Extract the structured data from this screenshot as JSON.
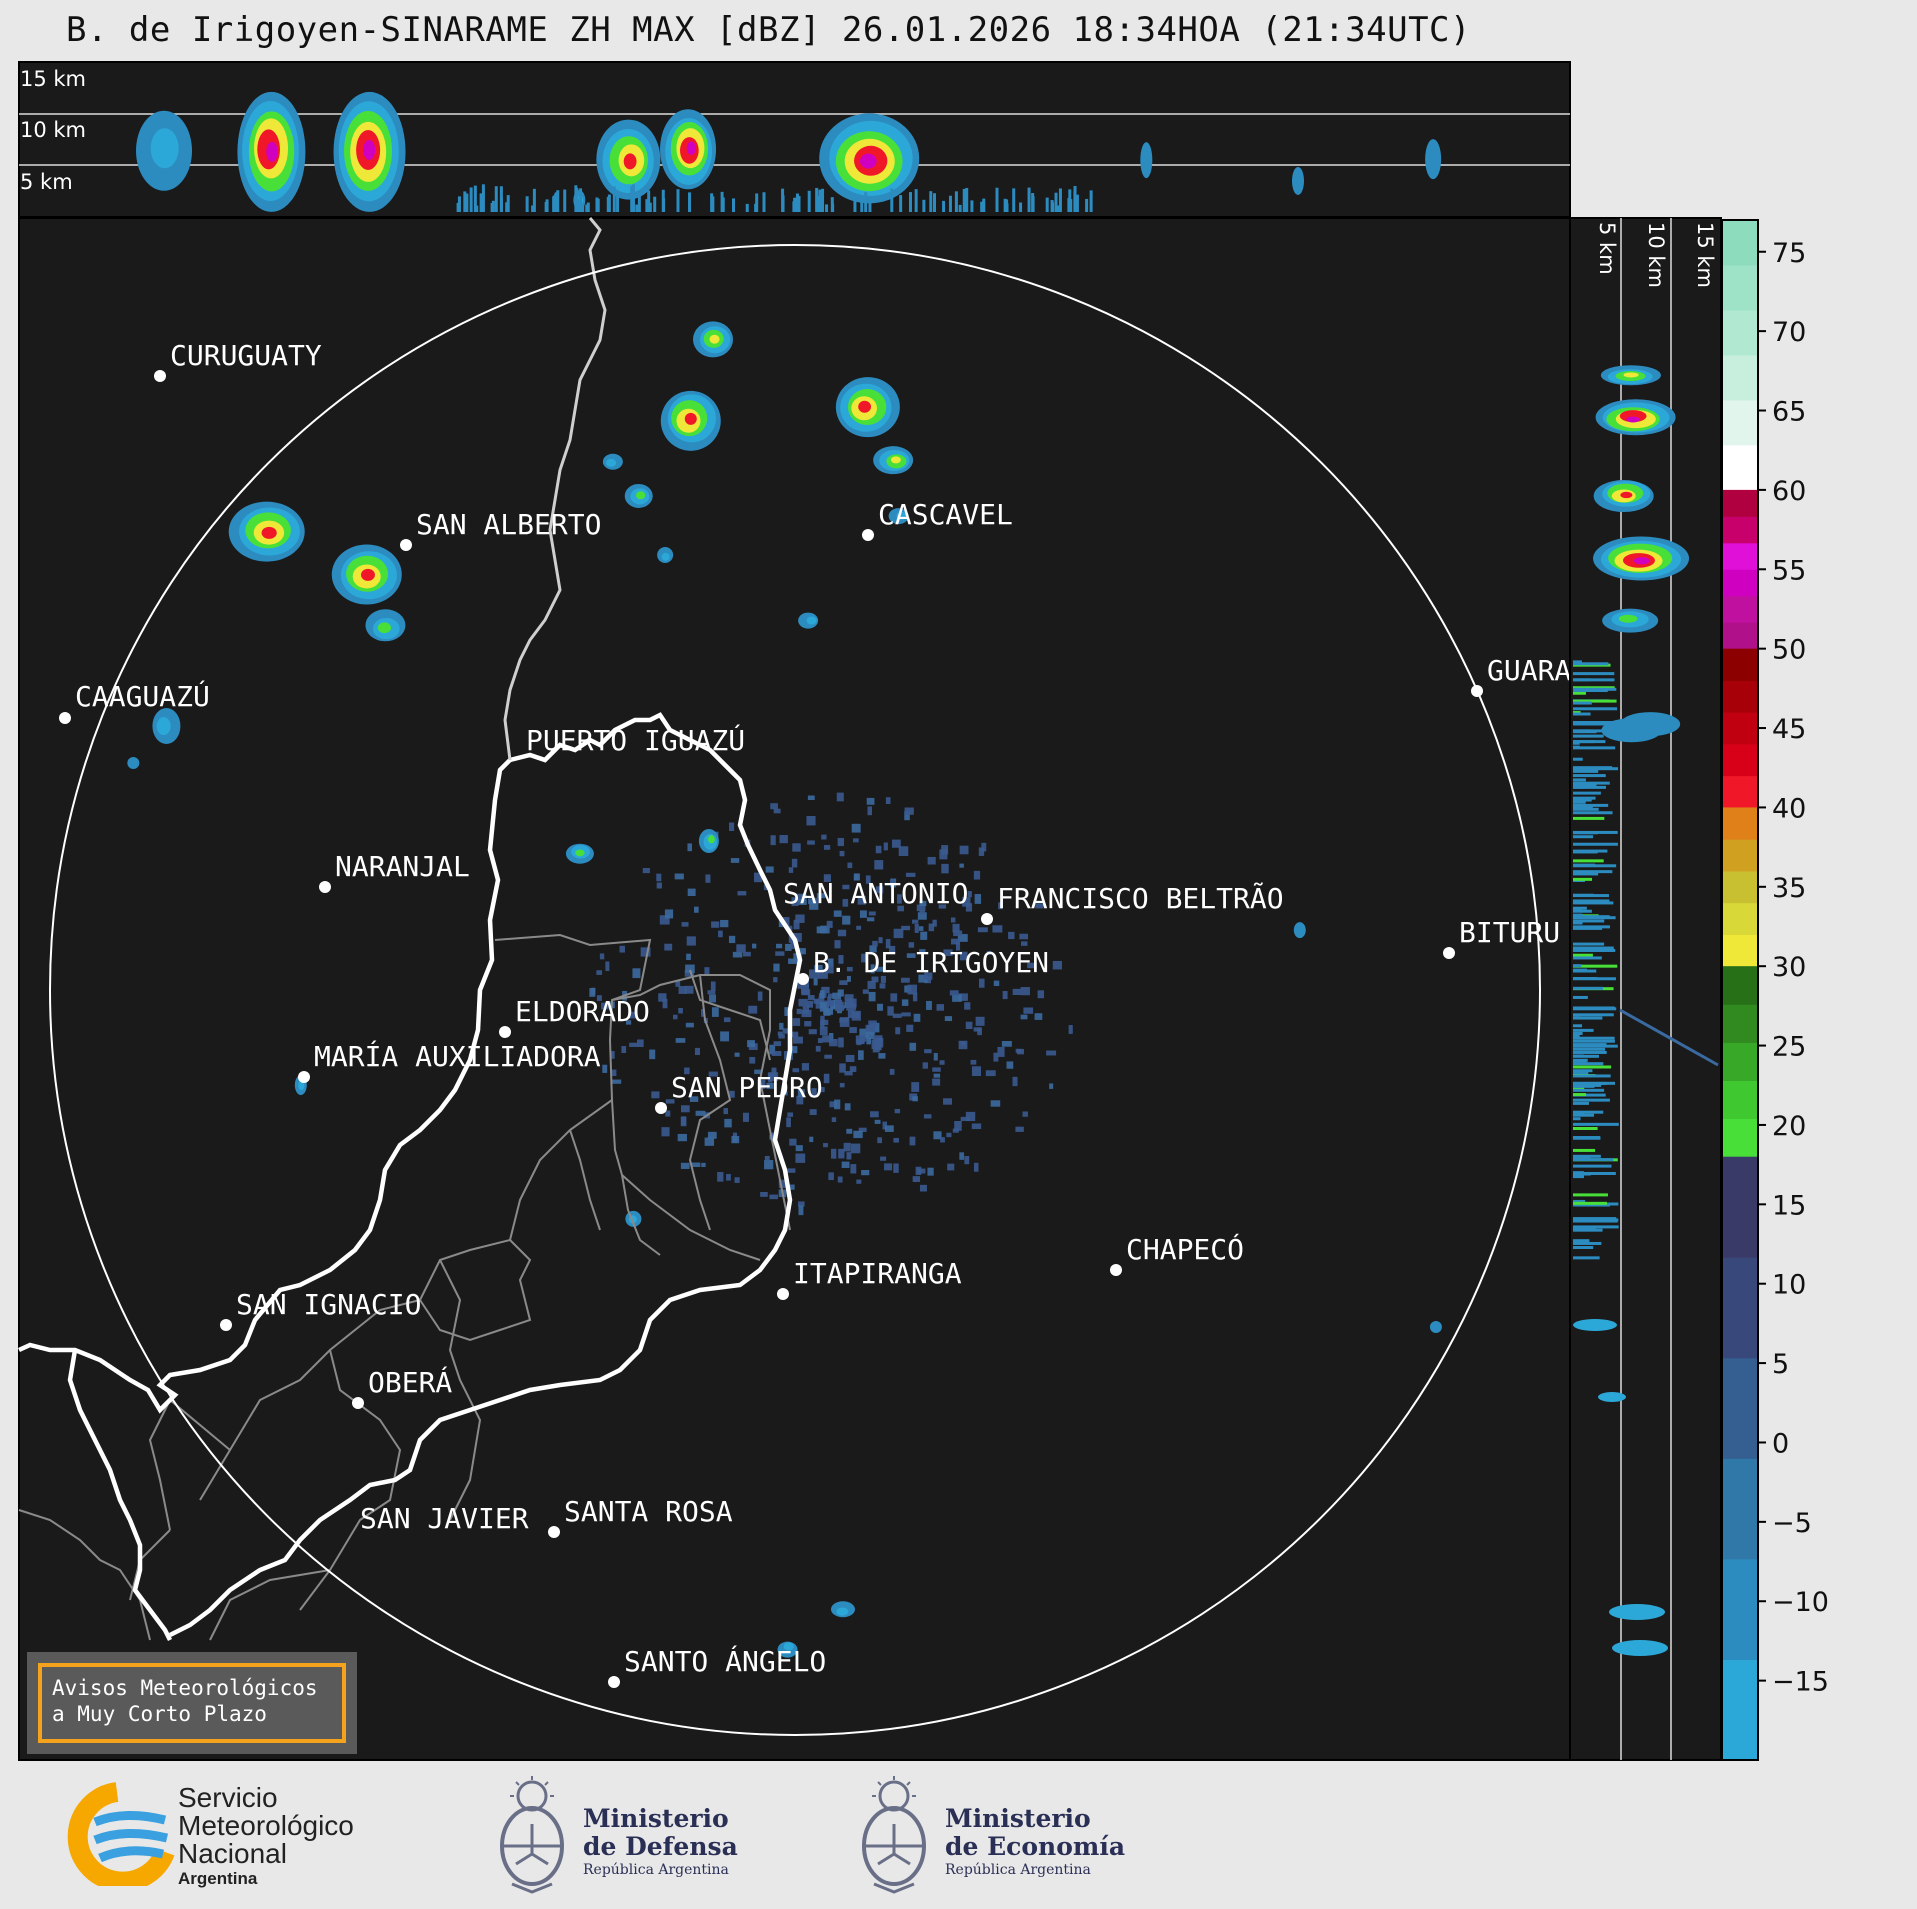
{
  "title": "B. de Irigoyen-SINARAME ZH MAX [dBZ] 26.01.2026 18:34HOA (21:34UTC)",
  "top_panel": {
    "height_labels": [
      "15 km",
      "10 km",
      "5 km"
    ]
  },
  "right_panel": {
    "height_labels": [
      "5 km",
      "10 km",
      "15 km"
    ]
  },
  "cities": [
    {
      "id": "curuguaty",
      "name": "CURUGUATY"
    },
    {
      "id": "san-alberto",
      "name": "SAN ALBERTO"
    },
    {
      "id": "cascavel",
      "name": "CASCAVEL"
    },
    {
      "id": "caaguazu",
      "name": "CAAGUAZÚ"
    },
    {
      "id": "guarapuava",
      "name": "GUARA"
    },
    {
      "id": "puerto-iguazu",
      "name": "PUERTO IGUAZÚ"
    },
    {
      "id": "naranjal",
      "name": "NARANJAL"
    },
    {
      "id": "san-antonio",
      "name": "SAN ANTONIO"
    },
    {
      "id": "francisco-beltrao",
      "name": "FRANCISCO BELTRÃO"
    },
    {
      "id": "bituruna",
      "name": "BITURU"
    },
    {
      "id": "b-de-irigoyen",
      "name": "B. DE IRIGOYEN"
    },
    {
      "id": "eldorado",
      "name": "ELDORADO"
    },
    {
      "id": "maria-auxiliadora",
      "name": "MARÍA AUXILIADORA"
    },
    {
      "id": "san-pedro",
      "name": "SAN PEDRO"
    },
    {
      "id": "chapeco",
      "name": "CHAPECÓ"
    },
    {
      "id": "itapiranga",
      "name": "ITAPIRANGA"
    },
    {
      "id": "san-ignacio",
      "name": "SAN IGNACIO"
    },
    {
      "id": "obera",
      "name": "OBERÁ"
    },
    {
      "id": "san-javier",
      "name": "SAN JAVIER"
    },
    {
      "id": "santa-rosa",
      "name": "SANTA ROSA"
    },
    {
      "id": "santo-angelo",
      "name": "SANTO ÁNGELO"
    }
  ],
  "colorbar": {
    "unit": "dBZ",
    "min": -20,
    "max": 77,
    "ticks": [
      "75",
      "70",
      "65",
      "60",
      "55",
      "50",
      "45",
      "40",
      "35",
      "30",
      "25",
      "20",
      "15",
      "10",
      "5",
      "0",
      "−5",
      "−10",
      "−15"
    ],
    "tick_values": [
      75,
      70,
      65,
      60,
      55,
      50,
      45,
      40,
      35,
      30,
      25,
      20,
      15,
      10,
      5,
      0,
      -5,
      -10,
      -15
    ],
    "bands": [
      {
        "from": 60,
        "to": 77,
        "colors": [
          "#ffffff",
          "#e2f5ec",
          "#c8eedd",
          "#b0e8d2",
          "#9ee2c8",
          "#8ddcbe"
        ]
      },
      {
        "from": 50,
        "to": 60,
        "colors": [
          "#b0108a",
          "#c010a0",
          "#d000c0",
          "#e010d8",
          "#c8006c",
          "#b00040"
        ]
      },
      {
        "from": 40,
        "to": 50,
        "colors": [
          "#f01828",
          "#d80018",
          "#c00010",
          "#a80008",
          "#8c0000"
        ]
      },
      {
        "from": 30,
        "to": 40,
        "colors": [
          "#f0e838",
          "#d8d838",
          "#c8c030",
          "#d0a020",
          "#e08018"
        ]
      },
      {
        "from": 18,
        "to": 30,
        "colors": [
          "#48e038",
          "#40c830",
          "#38a828",
          "#308a20",
          "#287018"
        ]
      },
      {
        "from": -20,
        "to": 18,
        "colors": [
          "#2ca8d8",
          "#2c8cc0",
          "#3078a8",
          "#345f90",
          "#38487a",
          "#3a3a68"
        ]
      }
    ]
  },
  "notice": {
    "line1": "Avisos Meteorológicos",
    "line2": "a Muy Corto Plazo"
  },
  "logos": {
    "smn": {
      "line1": "Servicio",
      "line2": "Meteorológico",
      "line3": "Nacional",
      "line4": "Argentina"
    },
    "defensa": {
      "line1": "Ministerio",
      "line2": "de Defensa",
      "line3": "República Argentina"
    },
    "economia": {
      "line1": "Ministerio",
      "line2": "de Economía",
      "line3": "República Argentina"
    }
  }
}
